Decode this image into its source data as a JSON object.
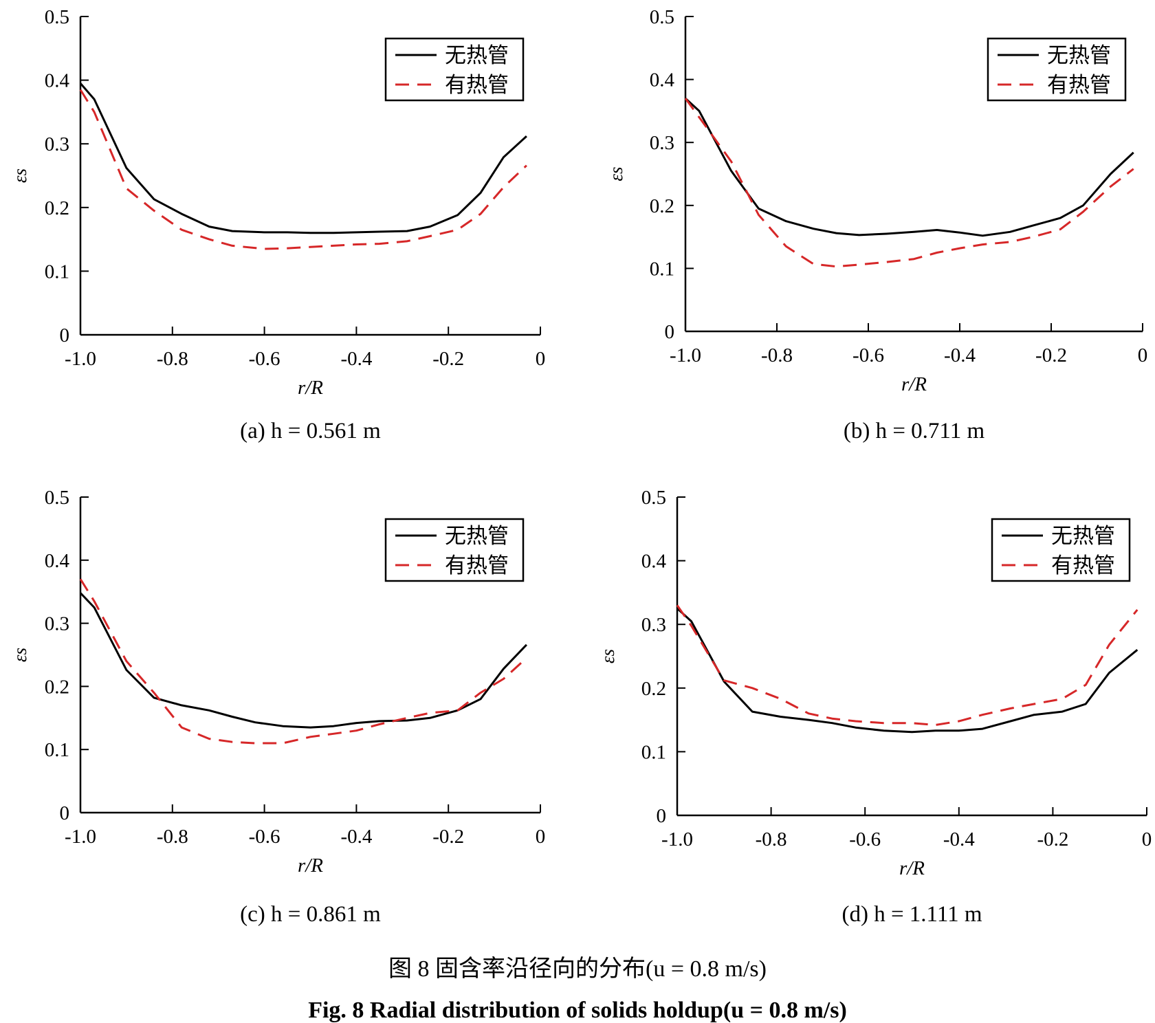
{
  "figure": {
    "caption_cn": "图 8    固含率沿径向的分布(u = 0.8 m/s)",
    "caption_en": "Fig. 8    Radial distribution of solids holdup(u = 0.8 m/s)"
  },
  "colors": {
    "without": "#000000",
    "with": "#d62728"
  },
  "chart_data": [
    {
      "type": "line",
      "title": "(a) h = 0.561 m",
      "xlabel": "r/R",
      "ylabel": "εs",
      "xlim": [
        -1.0,
        0
      ],
      "ylim": [
        0,
        0.5
      ],
      "xticks": [
        "-1.0",
        "-0.8",
        "-0.6",
        "-0.4",
        "-0.2",
        "0"
      ],
      "yticks": [
        "0",
        "0.1",
        "0.2",
        "0.3",
        "0.4",
        "0.5"
      ],
      "legend": "top-right",
      "series": [
        {
          "name": "无热管",
          "style": "solid",
          "x": [
            -1.0,
            -0.97,
            -0.9,
            -0.84,
            -0.78,
            -0.72,
            -0.67,
            -0.6,
            -0.55,
            -0.5,
            -0.45,
            -0.4,
            -0.35,
            -0.29,
            -0.24,
            -0.18,
            -0.13,
            -0.08,
            -0.03
          ],
          "y": [
            0.395,
            0.37,
            0.262,
            0.213,
            0.19,
            0.17,
            0.163,
            0.161,
            0.161,
            0.16,
            0.16,
            0.161,
            0.162,
            0.163,
            0.17,
            0.188,
            0.223,
            0.279,
            0.312
          ]
        },
        {
          "name": "有热管",
          "style": "dashed",
          "x": [
            -1.0,
            -0.97,
            -0.9,
            -0.84,
            -0.78,
            -0.72,
            -0.67,
            -0.6,
            -0.55,
            -0.5,
            -0.45,
            -0.4,
            -0.35,
            -0.29,
            -0.24,
            -0.18,
            -0.13,
            -0.08,
            -0.03
          ],
          "y": [
            0.385,
            0.35,
            0.23,
            0.195,
            0.165,
            0.15,
            0.14,
            0.135,
            0.136,
            0.138,
            0.14,
            0.142,
            0.143,
            0.147,
            0.155,
            0.165,
            0.19,
            0.232,
            0.266
          ]
        }
      ]
    },
    {
      "type": "line",
      "title": "(b) h = 0.711 m",
      "xlabel": "r/R",
      "ylabel": "εs",
      "xlim": [
        -1.0,
        0
      ],
      "ylim": [
        0,
        0.5
      ],
      "xticks": [
        "-1.0",
        "-0.8",
        "-0.6",
        "-0.4",
        "-0.2",
        "0"
      ],
      "yticks": [
        "0",
        "0.1",
        "0.2",
        "0.3",
        "0.4",
        "0.5"
      ],
      "legend": "top-right",
      "series": [
        {
          "name": "无热管",
          "style": "solid",
          "x": [
            -1.0,
            -0.97,
            -0.9,
            -0.84,
            -0.78,
            -0.72,
            -0.67,
            -0.62,
            -0.56,
            -0.5,
            -0.45,
            -0.4,
            -0.35,
            -0.29,
            -0.24,
            -0.18,
            -0.13,
            -0.07,
            -0.02
          ],
          "y": [
            0.37,
            0.35,
            0.255,
            0.195,
            0.175,
            0.163,
            0.156,
            0.153,
            0.155,
            0.158,
            0.161,
            0.157,
            0.152,
            0.158,
            0.168,
            0.18,
            0.2,
            0.25,
            0.284
          ]
        },
        {
          "name": "有热管",
          "style": "dashed",
          "x": [
            -1.0,
            -0.97,
            -0.9,
            -0.84,
            -0.78,
            -0.72,
            -0.67,
            -0.62,
            -0.56,
            -0.5,
            -0.45,
            -0.4,
            -0.35,
            -0.29,
            -0.24,
            -0.18,
            -0.13,
            -0.07,
            -0.02
          ],
          "y": [
            0.37,
            0.34,
            0.27,
            0.185,
            0.135,
            0.107,
            0.103,
            0.106,
            0.11,
            0.115,
            0.125,
            0.132,
            0.138,
            0.142,
            0.15,
            0.162,
            0.19,
            0.23,
            0.258
          ]
        }
      ]
    },
    {
      "type": "line",
      "title": "(c) h = 0.861 m",
      "xlabel": "r/R",
      "ylabel": "εs",
      "xlim": [
        -1.0,
        0
      ],
      "ylim": [
        0,
        0.5
      ],
      "xticks": [
        "-1.0",
        "-0.8",
        "-0.6",
        "-0.4",
        "-0.2",
        "0"
      ],
      "yticks": [
        "0",
        "0.1",
        "0.2",
        "0.3",
        "0.4",
        "0.5"
      ],
      "legend": "top-right",
      "series": [
        {
          "name": "无热管",
          "style": "solid",
          "x": [
            -1.0,
            -0.97,
            -0.9,
            -0.84,
            -0.78,
            -0.72,
            -0.67,
            -0.62,
            -0.56,
            -0.5,
            -0.45,
            -0.4,
            -0.35,
            -0.29,
            -0.24,
            -0.18,
            -0.13,
            -0.08,
            -0.03
          ],
          "y": [
            0.348,
            0.325,
            0.226,
            0.182,
            0.17,
            0.162,
            0.152,
            0.143,
            0.137,
            0.135,
            0.137,
            0.142,
            0.145,
            0.146,
            0.15,
            0.162,
            0.18,
            0.228,
            0.266
          ]
        },
        {
          "name": "有热管",
          "style": "dashed",
          "x": [
            -1.0,
            -0.97,
            -0.9,
            -0.84,
            -0.78,
            -0.72,
            -0.67,
            -0.62,
            -0.56,
            -0.5,
            -0.45,
            -0.4,
            -0.35,
            -0.29,
            -0.24,
            -0.18,
            -0.13,
            -0.08,
            -0.03
          ],
          "y": [
            0.37,
            0.335,
            0.24,
            0.19,
            0.135,
            0.117,
            0.112,
            0.11,
            0.11,
            0.12,
            0.125,
            0.13,
            0.14,
            0.15,
            0.158,
            0.162,
            0.19,
            0.212,
            0.245
          ]
        }
      ]
    },
    {
      "type": "line",
      "title": "(d) h = 1.111 m",
      "xlabel": "r/R",
      "ylabel": "εs",
      "xlim": [
        -1.0,
        0
      ],
      "ylim": [
        0,
        0.5
      ],
      "xticks": [
        "-1.0",
        "-0.8",
        "-0.6",
        "-0.4",
        "-0.2",
        "0"
      ],
      "yticks": [
        "0",
        "0.1",
        "0.2",
        "0.3",
        "0.4",
        "0.5"
      ],
      "legend": "top-right",
      "series": [
        {
          "name": "无热管",
          "style": "solid",
          "x": [
            -1.0,
            -0.97,
            -0.9,
            -0.84,
            -0.78,
            -0.72,
            -0.67,
            -0.62,
            -0.56,
            -0.5,
            -0.45,
            -0.4,
            -0.35,
            -0.29,
            -0.24,
            -0.18,
            -0.13,
            -0.08,
            -0.02
          ],
          "y": [
            0.325,
            0.305,
            0.21,
            0.163,
            0.155,
            0.15,
            0.145,
            0.138,
            0.133,
            0.131,
            0.133,
            0.133,
            0.136,
            0.148,
            0.158,
            0.163,
            0.175,
            0.224,
            0.26
          ]
        },
        {
          "name": "有热管",
          "style": "dashed",
          "x": [
            -1.0,
            -0.97,
            -0.9,
            -0.84,
            -0.78,
            -0.72,
            -0.67,
            -0.62,
            -0.56,
            -0.5,
            -0.45,
            -0.4,
            -0.35,
            -0.29,
            -0.24,
            -0.18,
            -0.13,
            -0.08,
            -0.02
          ],
          "y": [
            0.33,
            0.298,
            0.212,
            0.2,
            0.183,
            0.16,
            0.152,
            0.148,
            0.145,
            0.145,
            0.142,
            0.148,
            0.158,
            0.168,
            0.175,
            0.183,
            0.205,
            0.268,
            0.323
          ]
        }
      ]
    }
  ]
}
